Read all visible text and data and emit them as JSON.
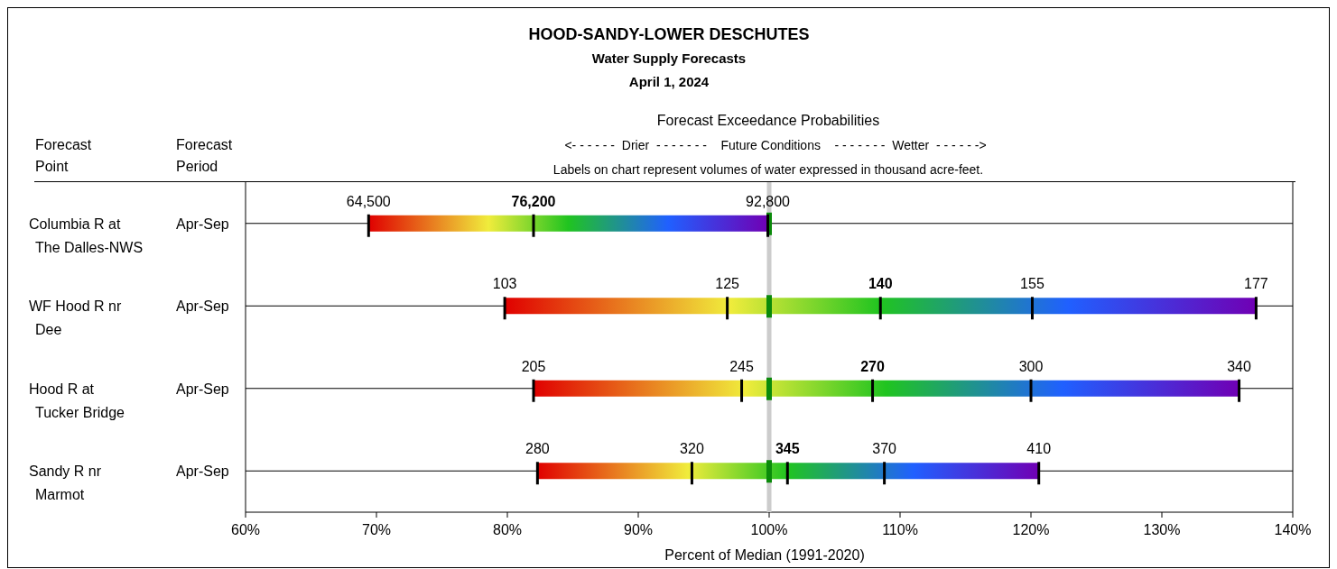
{
  "chart_data": {
    "type": "bar",
    "orientation": "horizontal",
    "title": "HOOD-SANDY-LOWER DESCHUTES",
    "subtitle": "Water Supply Forecasts",
    "xlabel": "Percent of Median (1991-2020)",
    "categories": [
      "Columbia R at\nThe Dalles-NWS",
      "WF Hood R nr\nDee",
      "Hood R at\nTucker Bridge",
      "Sandy R nr\nMarmot"
    ],
    "series": [
      {
        "base": [
          69.4,
          79.8,
          82.0,
          82.3
        ],
        "values": [
          12.6,
          28.7,
          25.9,
          19.1
        ]
      },
      {
        "base": [
          82.0,
          108.5,
          107.9,
          101.4
        ],
        "values": [
          17.9,
          28.7,
          28.0,
          19.2
        ]
      }
    ],
    "xlim": [
      60,
      140
    ],
    "xticks": [
      {
        "value": 60,
        "label": "60%"
      },
      {
        "value": 70,
        "label": "70%"
      },
      {
        "value": 80,
        "label": "80%"
      },
      {
        "value": 90,
        "label": "90%"
      },
      {
        "value": 100,
        "label": "100%"
      },
      {
        "value": 110,
        "label": "110%"
      },
      {
        "value": 120,
        "label": "120%"
      },
      {
        "value": 130,
        "label": "130%"
      },
      {
        "value": 140,
        "label": "140%"
      }
    ],
    "ref_lines": [
      {
        "axis": "x",
        "value": 100,
        "color": "#cccccc"
      }
    ],
    "grid": "y",
    "annotations": [
      "April 1, 2024",
      "Forecast Exceedance Probabilities",
      "<- - - - - -  Drier  - - - - - - -    Future Conditions    - - - - - - -  Wetter  - - - - - ->",
      "Labels on chart represent volumes of water expressed in thousand acre-feet.",
      "Forecast\nPoint",
      "Forecast\nPeriod",
      "Apr-Sep",
      "Apr-Sep",
      "Apr-Sep",
      "Apr-Sep",
      {
        "text": "64,500",
        "x": 69.4,
        "y": "Columbia R at\nThe Dalles-NWS"
      },
      {
        "text": "76,200",
        "x": 82.0,
        "y": "Columbia R at\nThe Dalles-NWS"
      },
      {
        "text": "140",
        "x": 108.5,
        "y": "WF Hood R nr\nDee"
      },
      {
        "text": "270",
        "x": 107.9,
        "y": "Hood R at\nTucker Bridge"
      },
      {
        "text": "345",
        "x": 101.4,
        "y": "Sandy R nr\nMarmot"
      },
      {
        "text": "92,800",
        "x": 99.9,
        "y": "Columbia R at\nThe Dalles-NWS"
      },
      {
        "text": "103",
        "x": 79.8,
        "y": "WF Hood R nr\nDee"
      },
      {
        "text": "125",
        "x": 96.8,
        "y": "WF Hood R nr\nDee"
      },
      {
        "text": "155",
        "x": 120.1,
        "y": "WF Hood R nr\nDee"
      },
      {
        "text": "177",
        "x": 137.2,
        "y": "WF Hood R nr\nDee"
      },
      {
        "text": "205",
        "x": 82.0,
        "y": "Hood R at\nTucker Bridge"
      },
      {
        "text": "245",
        "x": 97.9,
        "y": "Hood R at\nTucker Bridge"
      },
      {
        "text": "300",
        "x": 120.0,
        "y": "Hood R at\nTucker Bridge"
      },
      {
        "text": "340",
        "x": 135.9,
        "y": "Hood R at\nTucker Bridge"
      },
      {
        "text": "280",
        "x": 82.3,
        "y": "Sandy R nr\nMarmot"
      },
      {
        "text": "320",
        "x": 94.1,
        "y": "Sandy R nr\nMarmot"
      },
      {
        "text": "370",
        "x": 108.8,
        "y": "Sandy R nr\nMarmot"
      },
      {
        "text": "410",
        "x": 120.6,
        "y": "Sandy R nr\nMarmot"
      }
    ]
  }
}
